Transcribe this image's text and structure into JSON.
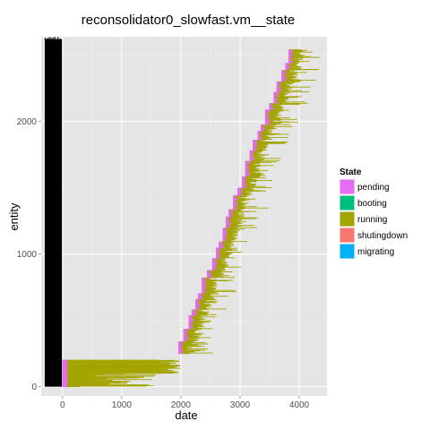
{
  "chart_data": {
    "type": "gantt",
    "title": "reconsolidator0_slowfast.vm__state",
    "xlabel": "date",
    "ylabel": "entity",
    "xlim": [
      -360,
      4470
    ],
    "ylim": [
      -70,
      2640
    ],
    "x_ticks": [
      0,
      1000,
      2000,
      3000,
      4000
    ],
    "y_ticks": [
      0,
      1000,
      2000
    ],
    "grid": true,
    "background": "#e5e5e5",
    "legend": {
      "title": "State",
      "placement": "right",
      "items": [
        {
          "label": "pending",
          "color": "#e76bf3"
        },
        {
          "label": "booting",
          "color": "#00bf7d"
        },
        {
          "label": "running",
          "color": "#a3a500"
        },
        {
          "label": "shutingdown",
          "color": "#f8766d"
        },
        {
          "label": "migrating",
          "color": "#00b0f6"
        }
      ]
    },
    "series": [
      {
        "name": "pending",
        "segments_estimated": [
          {
            "entity": [
              0,
              2620
            ],
            "start": -300,
            "end": -10,
            "note_color": "#000000"
          },
          {
            "entity": [
              0,
              110
            ],
            "start": 0,
            "end": 80
          },
          {
            "entity": [
              270,
              320
            ],
            "start": 2000,
            "end": 2040
          },
          {
            "entity": [
              2360,
              2550
            ],
            "start": 3960,
            "end": 4060
          }
        ]
      },
      {
        "name": "running",
        "segments_estimated": [
          {
            "entity": [
              100,
              200
            ],
            "start": 60,
            "end": 2000
          },
          {
            "entity": [
              0,
              100
            ],
            "start": 60,
            "end": 1720
          },
          {
            "entity": [
              270,
              560
            ],
            "start": 2000,
            "end": 2550
          },
          {
            "entity": [
              560,
              2550
            ],
            "start": 2200,
            "end": 4250
          }
        ]
      }
    ]
  }
}
